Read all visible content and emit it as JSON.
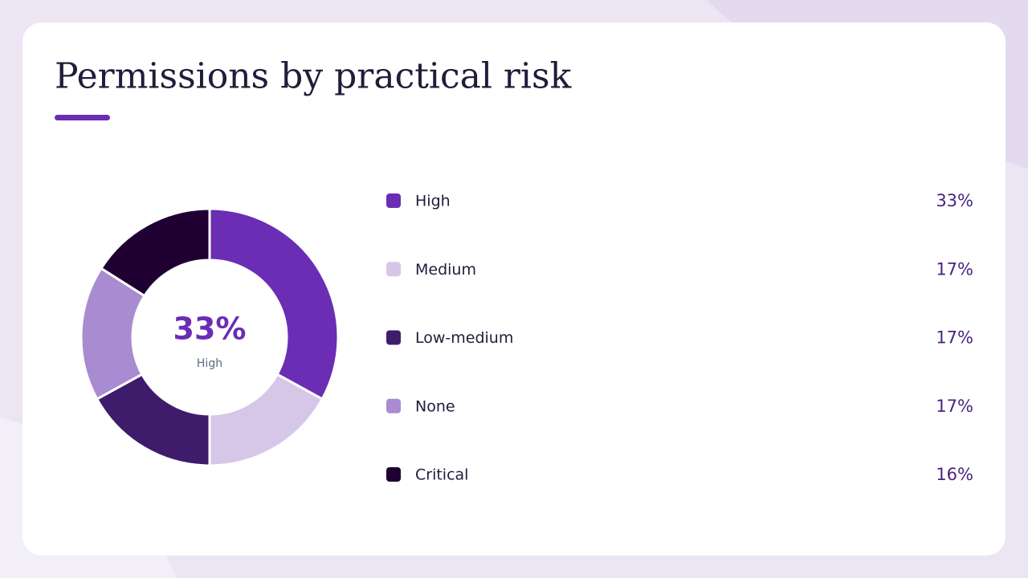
{
  "chart_data": {
    "type": "pie",
    "donut": true,
    "title": "Permissions by practical risk",
    "categories": [
      "High",
      "Medium",
      "Low-medium",
      "None",
      "Critical"
    ],
    "values": [
      33,
      17,
      17,
      17,
      16
    ],
    "value_labels": [
      "33%",
      "17%",
      "17%",
      "17%",
      "16%"
    ],
    "colors": [
      "#6a2db4",
      "#d6c6e8",
      "#3f1b6b",
      "#a98bd2",
      "#200032"
    ]
  }
}
